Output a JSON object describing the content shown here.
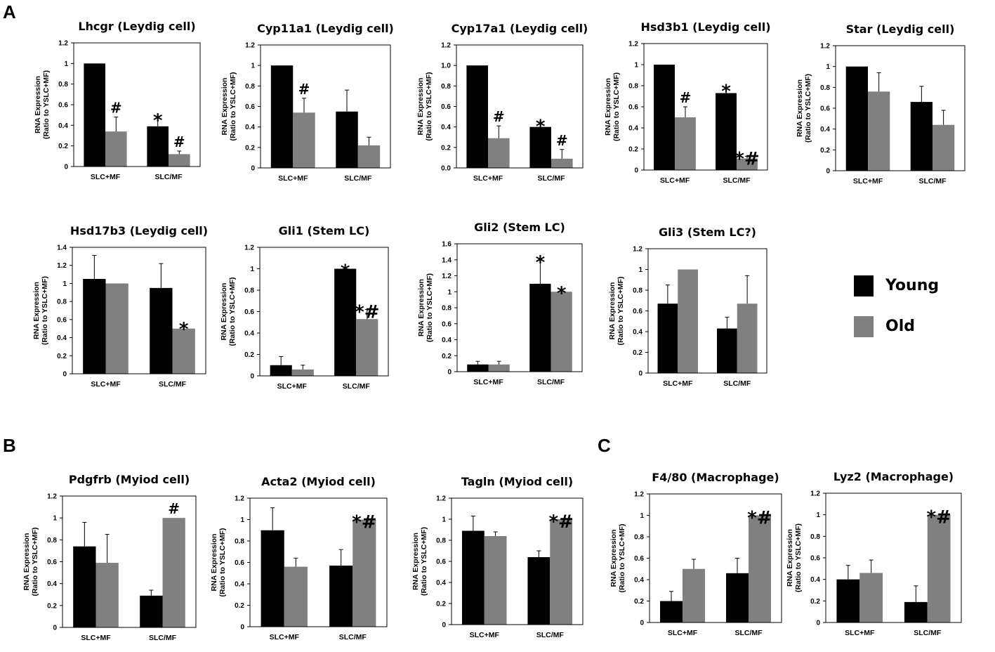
{
  "panels": [
    {
      "letter": "A"
    },
    {
      "letter": "B"
    },
    {
      "letter": "C"
    }
  ],
  "legend": {
    "items": [
      {
        "label": "Young",
        "color": "#000000"
      },
      {
        "label": "Old",
        "color": "#808080"
      }
    ]
  },
  "chart_data": [
    {
      "type": "bar",
      "panel": "A",
      "title": "Lhcgr (Leydig cell)",
      "categories": [
        "SLC+MF",
        "SLC/MF"
      ],
      "ylabel": [
        "RNA Expression",
        "(Ratio to YSLC+MF)"
      ],
      "ylim": [
        0,
        1.2
      ],
      "yticks": [
        "0",
        "0.2",
        "0.4",
        "0.6",
        "0.8",
        "1",
        "1.2"
      ],
      "series": [
        {
          "name": "Young",
          "values": [
            1.0,
            0.39
          ],
          "errors": [
            0,
            0.08
          ]
        },
        {
          "name": "Old",
          "values": [
            0.34,
            0.12
          ],
          "errors": [
            0.14,
            0.03
          ]
        }
      ],
      "annotations": [
        {
          "series": "Old",
          "category": "SLC+MF",
          "text": "#"
        },
        {
          "series": "Young",
          "category": "SLC/MF",
          "text": "*"
        },
        {
          "series": "Old",
          "category": "SLC/MF",
          "text": "#"
        }
      ]
    },
    {
      "type": "bar",
      "panel": "A",
      "title": "Cyp11a1 (Leydig cell)",
      "categories": [
        "SLC+MF",
        "SLC/MF"
      ],
      "ylabel": [
        "RNA Expression",
        "(Ratio to YSLC+MF)"
      ],
      "ylim": [
        0,
        1.2
      ],
      "yticks": [
        "0",
        "0.2",
        "0.4",
        "0.6",
        "0.8",
        "1",
        "1.2"
      ],
      "series": [
        {
          "name": "Young",
          "values": [
            1.0,
            0.55
          ],
          "errors": [
            0,
            0.21
          ]
        },
        {
          "name": "Old",
          "values": [
            0.54,
            0.22
          ],
          "errors": [
            0.14,
            0.08
          ]
        }
      ],
      "annotations": [
        {
          "series": "Old",
          "category": "SLC+MF",
          "text": "#"
        }
      ]
    },
    {
      "type": "bar",
      "panel": "A",
      "title": "Cyp17a1 (Leydig cell)",
      "categories": [
        "SLC+MF",
        "SLC/MF"
      ],
      "ylabel": [
        "RNA Expression",
        "(Ratio to YSLC+MF)"
      ],
      "ylim": [
        0,
        1.2
      ],
      "yticks": [
        "0.0",
        "0.2",
        "0.4",
        "0.6",
        "0.8",
        "1.0",
        "1.2"
      ],
      "series": [
        {
          "name": "Young",
          "values": [
            1.0,
            0.4
          ],
          "errors": [
            0,
            0.03
          ]
        },
        {
          "name": "Old",
          "values": [
            0.29,
            0.09
          ],
          "errors": [
            0.12,
            0.09
          ]
        }
      ],
      "annotations": [
        {
          "series": "Old",
          "category": "SLC+MF",
          "text": "#"
        },
        {
          "series": "Young",
          "category": "SLC/MF",
          "text": "*"
        },
        {
          "series": "Old",
          "category": "SLC/MF",
          "text": "#"
        }
      ]
    },
    {
      "type": "bar",
      "panel": "A",
      "title": "Hsd3b1 (Leydig cell)",
      "categories": [
        "SLC+MF",
        "SLC/MF"
      ],
      "ylabel": [
        "RNA Expression",
        "(Ratio to YSLC+MF)"
      ],
      "ylim": [
        0,
        1.2
      ],
      "yticks": [
        "0",
        "0.2",
        "0.4",
        "0.6",
        "0.8",
        "1",
        "1.2"
      ],
      "series": [
        {
          "name": "Young",
          "values": [
            1.0,
            0.73
          ],
          "errors": [
            0,
            0.04
          ]
        },
        {
          "name": "Old",
          "values": [
            0.5,
            0.11
          ],
          "errors": [
            0.1,
            0.02
          ]
        }
      ],
      "annotations": [
        {
          "series": "Old",
          "category": "SLC+MF",
          "text": "#"
        },
        {
          "series": "Young",
          "category": "SLC/MF",
          "text": "*"
        },
        {
          "series": "Old",
          "category": "SLC/MF",
          "text": "*#"
        }
      ]
    },
    {
      "type": "bar",
      "panel": "A",
      "title": "Star (Leydig cell)",
      "categories": [
        "SLC+MF",
        "SLC/MF"
      ],
      "ylabel": [
        "RNA Expression",
        "(Ratio to YSLC+MF)"
      ],
      "ylim": [
        0,
        1.2
      ],
      "yticks": [
        "0",
        "0.2",
        "0.4",
        "0.6",
        "0.8",
        "1",
        "1.2"
      ],
      "series": [
        {
          "name": "Young",
          "values": [
            1.0,
            0.66
          ],
          "errors": [
            0,
            0.15
          ]
        },
        {
          "name": "Old",
          "values": [
            0.76,
            0.44
          ],
          "errors": [
            0.18,
            0.14
          ]
        }
      ],
      "annotations": []
    },
    {
      "type": "bar",
      "panel": "A",
      "title": "Hsd17b3 (Leydig cell)",
      "categories": [
        "SLC+MF",
        "SLC/MF"
      ],
      "ylabel": [
        "RNA Expression",
        "(Ratio to YSLC+MF)"
      ],
      "ylim": [
        0,
        1.4
      ],
      "yticks": [
        "0",
        "0.2",
        "0.4",
        "0.6",
        "0.8",
        "1",
        "1.2",
        "1.4"
      ],
      "series": [
        {
          "name": "Young",
          "values": [
            1.05,
            0.95
          ],
          "errors": [
            0.26,
            0.27
          ]
        },
        {
          "name": "Old",
          "values": [
            1.0,
            0.5
          ],
          "errors": [
            0,
            0.02
          ]
        }
      ],
      "annotations": [
        {
          "series": "Old",
          "category": "SLC/MF",
          "text": "*"
        }
      ]
    },
    {
      "type": "bar",
      "panel": "A",
      "title": "Gli1 (Stem LC)",
      "categories": [
        "SLC+MF",
        "SLC/MF"
      ],
      "ylabel": [
        "RNA Expression",
        "(Ratio to YSLC+MF)"
      ],
      "ylim": [
        0,
        1.2
      ],
      "yticks": [
        "0",
        "0.2",
        "0.4",
        "0.6",
        "0.8",
        "1",
        "1.2"
      ],
      "series": [
        {
          "name": "Young",
          "values": [
            0.1,
            1.0
          ],
          "errors": [
            0.08,
            0
          ]
        },
        {
          "name": "Old",
          "values": [
            0.06,
            0.53
          ],
          "errors": [
            0.04,
            0.09
          ]
        }
      ],
      "annotations": [
        {
          "series": "Young",
          "category": "SLC/MF",
          "text": "*"
        },
        {
          "series": "Old",
          "category": "SLC/MF",
          "text": "*#"
        }
      ]
    },
    {
      "type": "bar",
      "panel": "A",
      "title": "Gli2 (Stem LC)",
      "categories": [
        "SLC+MF",
        "SLC/MF"
      ],
      "ylabel": [
        "RNA Expression",
        "(Ratio to YSLC+MF)"
      ],
      "ylim": [
        0,
        1.6
      ],
      "yticks": [
        "0",
        "0.2",
        "0.4",
        "0.6",
        "0.8",
        "1",
        "1.2",
        "1.4",
        "1.6"
      ],
      "series": [
        {
          "name": "Young",
          "values": [
            0.09,
            1.1
          ],
          "errors": [
            0.04,
            0.3
          ]
        },
        {
          "name": "Old",
          "values": [
            0.09,
            1.0
          ],
          "errors": [
            0.04,
            0.01
          ]
        }
      ],
      "annotations": [
        {
          "series": "Young",
          "category": "SLC/MF",
          "text": "*"
        },
        {
          "series": "Old",
          "category": "SLC/MF",
          "text": "*"
        }
      ]
    },
    {
      "type": "bar",
      "panel": "A",
      "title": "Gli3 (Stem LC?)",
      "categories": [
        "SLC+MF",
        "SLC/MF"
      ],
      "ylabel": [
        "RNA Expression",
        "(Ratio to YSLC+MF)"
      ],
      "ylim": [
        0,
        1.2
      ],
      "yticks": [
        "0",
        "0.2",
        "0.4",
        "0.6",
        "0.8",
        "1",
        "1.2"
      ],
      "series": [
        {
          "name": "Young",
          "values": [
            0.67,
            0.43
          ],
          "errors": [
            0.18,
            0.11
          ]
        },
        {
          "name": "Old",
          "values": [
            1.0,
            0.67
          ],
          "errors": [
            0,
            0.27
          ]
        }
      ],
      "annotations": []
    },
    {
      "type": "bar",
      "panel": "B",
      "title": "Pdgfrb (Myiod cell)",
      "categories": [
        "SLC+MF",
        "SLC/MF"
      ],
      "ylabel": [
        "RNA Expression",
        "(Ratio to YSLC+MF)"
      ],
      "ylim": [
        0,
        1.2
      ],
      "yticks": [
        "0",
        "0.2",
        "0.4",
        "0.6",
        "0.8",
        "1",
        "1.2"
      ],
      "series": [
        {
          "name": "Young",
          "values": [
            0.74,
            0.29
          ],
          "errors": [
            0.22,
            0.05
          ]
        },
        {
          "name": "Old",
          "values": [
            0.59,
            1.0
          ],
          "errors": [
            0.26,
            0
          ]
        }
      ],
      "annotations": [
        {
          "series": "Old",
          "category": "SLC/MF",
          "text": "#"
        }
      ]
    },
    {
      "type": "bar",
      "panel": "B",
      "title": "Acta2 (Myiod cell)",
      "categories": [
        "SLC+MF",
        "SLC/MF"
      ],
      "ylabel": [
        "RNA Expression",
        "(Ratio to YSLC+MF)"
      ],
      "ylim": [
        0,
        1.2
      ],
      "yticks": [
        "0",
        "0.2",
        "0.4",
        "0.6",
        "0.8",
        "1",
        "1.2"
      ],
      "series": [
        {
          "name": "Young",
          "values": [
            0.9,
            0.57
          ],
          "errors": [
            0.21,
            0.15
          ]
        },
        {
          "name": "Old",
          "values": [
            0.56,
            1.0
          ],
          "errors": [
            0.08,
            0
          ]
        }
      ],
      "annotations": [
        {
          "series": "Old",
          "category": "SLC/MF",
          "text": "*#"
        }
      ]
    },
    {
      "type": "bar",
      "panel": "B",
      "title": "Tagln (Myiod cell)",
      "categories": [
        "SLC+MF",
        "SLC/MF"
      ],
      "ylabel": [
        "RNA Expression",
        "(Ratio to YSLC+MF)"
      ],
      "ylim": [
        0,
        1.2
      ],
      "yticks": [
        "0",
        "0.2",
        "0.4",
        "0.6",
        "0.8",
        "1",
        "1.2"
      ],
      "series": [
        {
          "name": "Young",
          "values": [
            0.89,
            0.64
          ],
          "errors": [
            0.14,
            0.06
          ]
        },
        {
          "name": "Old",
          "values": [
            0.84,
            1.0
          ],
          "errors": [
            0.04,
            0
          ]
        }
      ],
      "annotations": [
        {
          "series": "Old",
          "category": "SLC/MF",
          "text": "*#"
        }
      ]
    },
    {
      "type": "bar",
      "panel": "C",
      "title": "F4/80 (Macrophage)",
      "categories": [
        "SLC+MF",
        "SLC/MF"
      ],
      "ylabel": [
        "RNA Expression",
        "(Ratio to YSLC+MF)"
      ],
      "ylim": [
        0,
        1.2
      ],
      "yticks": [
        "0",
        "0.2",
        "0.4",
        "0.6",
        "0.8",
        "1",
        "1.2"
      ],
      "series": [
        {
          "name": "Young",
          "values": [
            0.2,
            0.46
          ],
          "errors": [
            0.09,
            0.14
          ]
        },
        {
          "name": "Old",
          "values": [
            0.5,
            1.0
          ],
          "errors": [
            0.09,
            0
          ]
        }
      ],
      "annotations": [
        {
          "series": "Old",
          "category": "SLC/MF",
          "text": "*#"
        }
      ]
    },
    {
      "type": "bar",
      "panel": "C",
      "title": "Lyz2 (Macrophage)",
      "categories": [
        "SLC+MF",
        "SLC/MF"
      ],
      "ylabel": [
        "RNA Expression",
        "(Ratio to YSLC+MF)"
      ],
      "ylim": [
        0,
        1.2
      ],
      "yticks": [
        "0",
        "0.2",
        "0.4",
        "0.6",
        "0.8",
        "1",
        "1.2"
      ],
      "series": [
        {
          "name": "Young",
          "values": [
            0.4,
            0.19
          ],
          "errors": [
            0.13,
            0.15
          ]
        },
        {
          "name": "Old",
          "values": [
            0.46,
            1.0
          ],
          "errors": [
            0.12,
            0
          ]
        }
      ],
      "annotations": [
        {
          "series": "Old",
          "category": "SLC/MF",
          "text": "*#"
        }
      ]
    }
  ]
}
